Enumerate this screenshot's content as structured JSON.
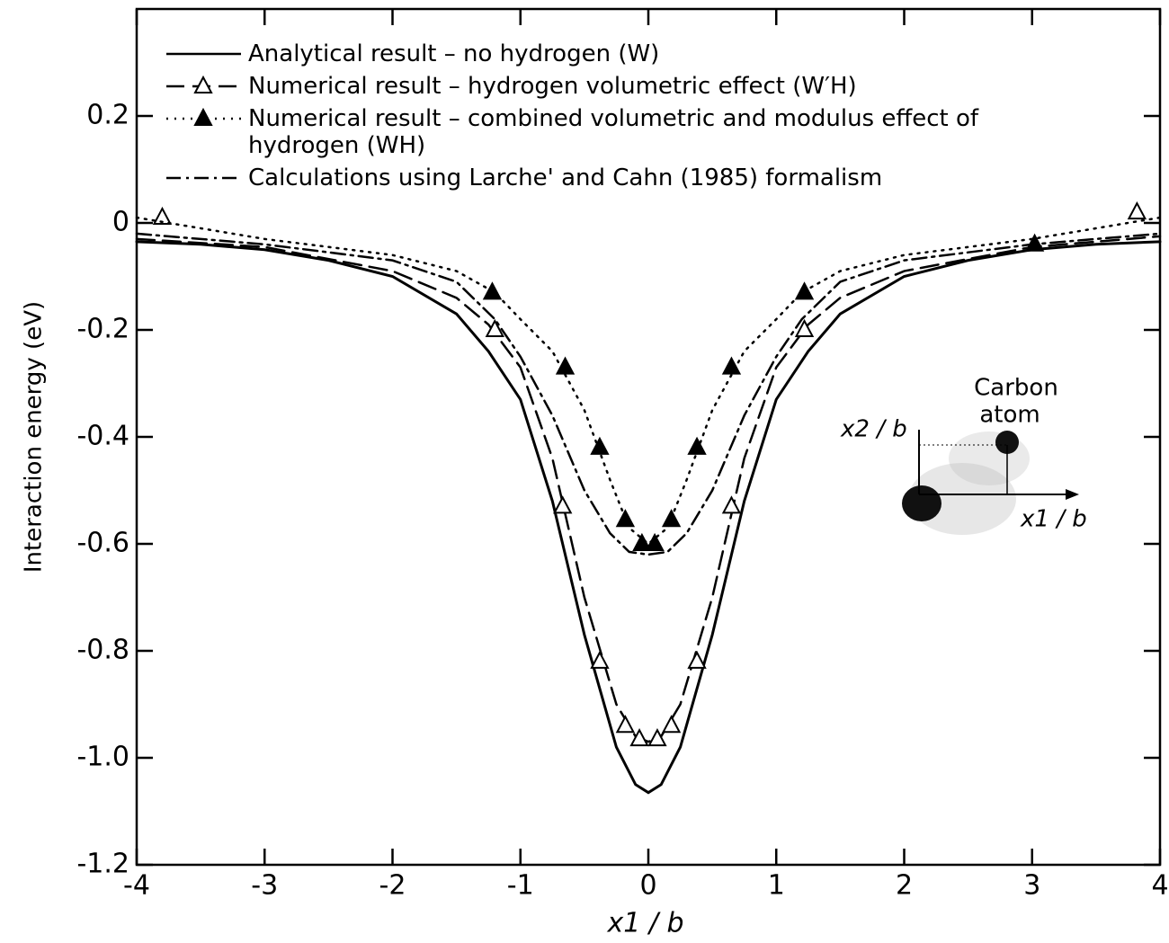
{
  "chart_data": {
    "type": "line",
    "xlabel": "x1 / b",
    "ylabel": "Interaction energy (eV)",
    "xlim": [
      -4,
      4
    ],
    "ylim": [
      -1.2,
      0.4
    ],
    "xticks": [
      -4,
      -3,
      -2,
      -1,
      0,
      1,
      2,
      3,
      4
    ],
    "yticks": [
      -1.2,
      {
        "value": -1,
        "label": "-1.0"
      },
      -0.8,
      -0.6,
      -0.4,
      -0.2,
      0,
      0.2
    ],
    "legend": "upper-left",
    "series": [
      {
        "name": "Analytical result – no hydrogen (W)",
        "style": "solid",
        "color": "#000000",
        "x": [
          -4,
          -3.5,
          -3,
          -2.5,
          -2,
          -1.5,
          -1.25,
          -1,
          -0.75,
          -0.5,
          -0.25,
          -0.1,
          0,
          0.1,
          0.25,
          0.5,
          0.75,
          1,
          1.25,
          1.5,
          2,
          2.5,
          3,
          3.5,
          4
        ],
        "values": [
          -0.035,
          -0.04,
          -0.05,
          -0.07,
          -0.1,
          -0.17,
          -0.24,
          -0.33,
          -0.52,
          -0.77,
          -0.98,
          -1.05,
          -1.065,
          -1.05,
          -0.98,
          -0.77,
          -0.52,
          -0.33,
          -0.24,
          -0.17,
          -0.1,
          -0.07,
          -0.05,
          -0.04,
          -0.035
        ]
      },
      {
        "name": "Numerical result – hydrogen volumetric effect (W′H)",
        "style": "dashed",
        "color": "#000000",
        "marker": "open-triangle",
        "x": [
          -4,
          -3,
          -2,
          -1.5,
          -1.25,
          -1,
          -0.75,
          -0.5,
          -0.25,
          -0.1,
          0,
          0.1,
          0.25,
          0.5,
          0.75,
          1,
          1.25,
          1.5,
          2,
          3,
          4
        ],
        "values": [
          -0.03,
          -0.045,
          -0.09,
          -0.14,
          -0.19,
          -0.27,
          -0.44,
          -0.7,
          -0.9,
          -0.96,
          -0.97,
          -0.96,
          -0.9,
          -0.7,
          -0.44,
          -0.27,
          -0.19,
          -0.14,
          -0.09,
          -0.045,
          -0.025
        ],
        "marker_x": [
          -3.8,
          -1.2,
          -0.67,
          -0.38,
          -0.18,
          -0.07,
          0.07,
          0.18,
          0.38,
          0.65,
          1.22,
          3.82
        ],
        "marker_values": [
          0.01,
          -0.2,
          -0.53,
          -0.82,
          -0.94,
          -0.965,
          -0.965,
          -0.94,
          -0.82,
          -0.53,
          -0.2,
          0.02
        ]
      },
      {
        "name": "Numerical result – combined volumetric and modulus effect of hydrogen (WH)",
        "style": "dotted",
        "color": "#000000",
        "marker": "filled-triangle",
        "x": [
          -4,
          -3,
          -2,
          -1.5,
          -1.2,
          -1,
          -0.75,
          -0.5,
          -0.3,
          -0.15,
          0,
          0.15,
          0.3,
          0.5,
          0.75,
          1,
          1.2,
          1.5,
          2,
          3,
          4
        ],
        "values": [
          0.01,
          -0.03,
          -0.06,
          -0.09,
          -0.13,
          -0.18,
          -0.24,
          -0.35,
          -0.48,
          -0.57,
          -0.6,
          -0.57,
          -0.48,
          -0.35,
          -0.24,
          -0.18,
          -0.13,
          -0.09,
          -0.06,
          -0.03,
          0.01
        ],
        "marker_x": [
          -1.22,
          -0.65,
          -0.38,
          -0.18,
          -0.05,
          0.05,
          0.18,
          0.38,
          0.65,
          1.22,
          3.02
        ],
        "marker_values": [
          -0.13,
          -0.27,
          -0.42,
          -0.555,
          -0.6,
          -0.6,
          -0.555,
          -0.42,
          -0.27,
          -0.13,
          -0.04
        ]
      },
      {
        "name": "Calculations using Larche' and Cahn (1985) formalism",
        "style": "dashdot",
        "color": "#000000",
        "x": [
          -4,
          -3,
          -2,
          -1.5,
          -1.2,
          -1,
          -0.75,
          -0.5,
          -0.3,
          -0.15,
          0,
          0.15,
          0.3,
          0.5,
          0.75,
          1,
          1.2,
          1.5,
          2,
          3,
          4
        ],
        "values": [
          -0.02,
          -0.04,
          -0.07,
          -0.11,
          -0.18,
          -0.25,
          -0.36,
          -0.5,
          -0.58,
          -0.615,
          -0.62,
          -0.615,
          -0.58,
          -0.5,
          -0.36,
          -0.25,
          -0.18,
          -0.11,
          -0.07,
          -0.04,
          -0.02
        ]
      }
    ],
    "annotations": [
      "Carbon",
      "atom",
      "x2 / b",
      "x1 / b"
    ]
  }
}
